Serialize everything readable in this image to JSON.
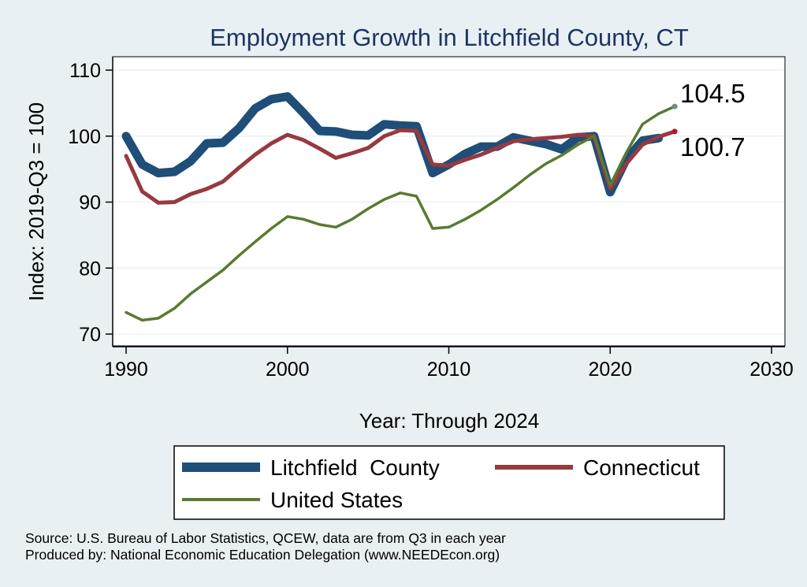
{
  "chart_data": {
    "type": "line",
    "title": "Employment Growth in Litchfield County, CT",
    "xlabel": "Year: Through 2024",
    "ylabel": "Index: 2019-Q3 = 100",
    "xlim": [
      1990,
      2030
    ],
    "ylim": [
      68,
      112
    ],
    "xticks": [
      1990,
      2000,
      2010,
      2020,
      2030
    ],
    "yticks": [
      70,
      80,
      90,
      100,
      110
    ],
    "grid": true,
    "legend_position": "bottom",
    "series": [
      {
        "name": "Litchfield  County",
        "color": "#1f4e79",
        "x": [
          1990,
          1991,
          1992,
          1993,
          1994,
          1995,
          1996,
          1997,
          1998,
          1999,
          2000,
          2001,
          2002,
          2003,
          2004,
          2005,
          2006,
          2007,
          2008,
          2009,
          2010,
          2011,
          2012,
          2013,
          2014,
          2015,
          2016,
          2017,
          2018,
          2019,
          2020,
          2021,
          2022,
          2023
        ],
        "y": [
          100.0,
          95.7,
          94.4,
          94.6,
          96.2,
          98.9,
          99.0,
          101.2,
          104.2,
          105.6,
          106.0,
          103.5,
          100.8,
          100.7,
          100.2,
          100.1,
          101.8,
          101.6,
          101.5,
          94.4,
          95.7,
          97.3,
          98.4,
          98.4,
          99.8,
          99.3,
          98.8,
          98.0,
          99.8,
          100.0,
          91.5,
          96.5,
          99.3,
          99.7
        ]
      },
      {
        "name": "Connecticut",
        "color": "#973a3e",
        "x": [
          1990,
          1991,
          1992,
          1993,
          1994,
          1995,
          1996,
          1997,
          1998,
          1999,
          2000,
          2001,
          2002,
          2003,
          2004,
          2005,
          2006,
          2007,
          2008,
          2009,
          2010,
          2011,
          2012,
          2013,
          2014,
          2015,
          2016,
          2017,
          2018,
          2019,
          2020,
          2021,
          2022,
          2023,
          2024
        ],
        "y": [
          97.0,
          91.6,
          89.9,
          90.0,
          91.2,
          92.0,
          93.1,
          95.2,
          97.2,
          98.9,
          100.2,
          99.4,
          98.1,
          96.7,
          97.4,
          98.2,
          100.0,
          100.9,
          100.8,
          95.7,
          95.5,
          96.4,
          97.2,
          98.2,
          99.2,
          99.5,
          99.7,
          99.9,
          100.2,
          100.0,
          92.0,
          95.8,
          98.7,
          99.9,
          100.7
        ]
      },
      {
        "name": "United States",
        "color": "#5a7a30",
        "x": [
          1990,
          1991,
          1992,
          1993,
          1994,
          1995,
          1996,
          1997,
          1998,
          1999,
          2000,
          2001,
          2002,
          2003,
          2004,
          2005,
          2006,
          2007,
          2008,
          2009,
          2010,
          2011,
          2012,
          2013,
          2014,
          2015,
          2016,
          2017,
          2018,
          2019,
          2020,
          2021,
          2022,
          2023,
          2024
        ],
        "y": [
          73.3,
          72.1,
          72.4,
          73.9,
          76.1,
          77.9,
          79.7,
          81.9,
          84.0,
          86.0,
          87.8,
          87.4,
          86.6,
          86.2,
          87.4,
          89.0,
          90.4,
          91.4,
          90.9,
          86.0,
          86.2,
          87.4,
          88.8,
          90.4,
          92.2,
          94.1,
          95.8,
          97.1,
          98.7,
          100.0,
          92.5,
          97.5,
          101.8,
          103.4,
          104.5
        ]
      }
    ],
    "end_labels": [
      {
        "series": "United States",
        "text": "104.5",
        "point_color": "#6e8f7c"
      },
      {
        "series": "Connecticut",
        "text": "100.7",
        "point_color": "#c0112b"
      }
    ]
  },
  "legend": {
    "items": [
      "Litchfield  County",
      "Connecticut",
      "United States"
    ]
  },
  "notes": {
    "source": "Source: U.S. Bureau of Labor Statistics, QCEW, data are from Q3 in each year",
    "produced": "Produced by: National Economic Education Delegation (www.NEEDEcon.org)"
  }
}
